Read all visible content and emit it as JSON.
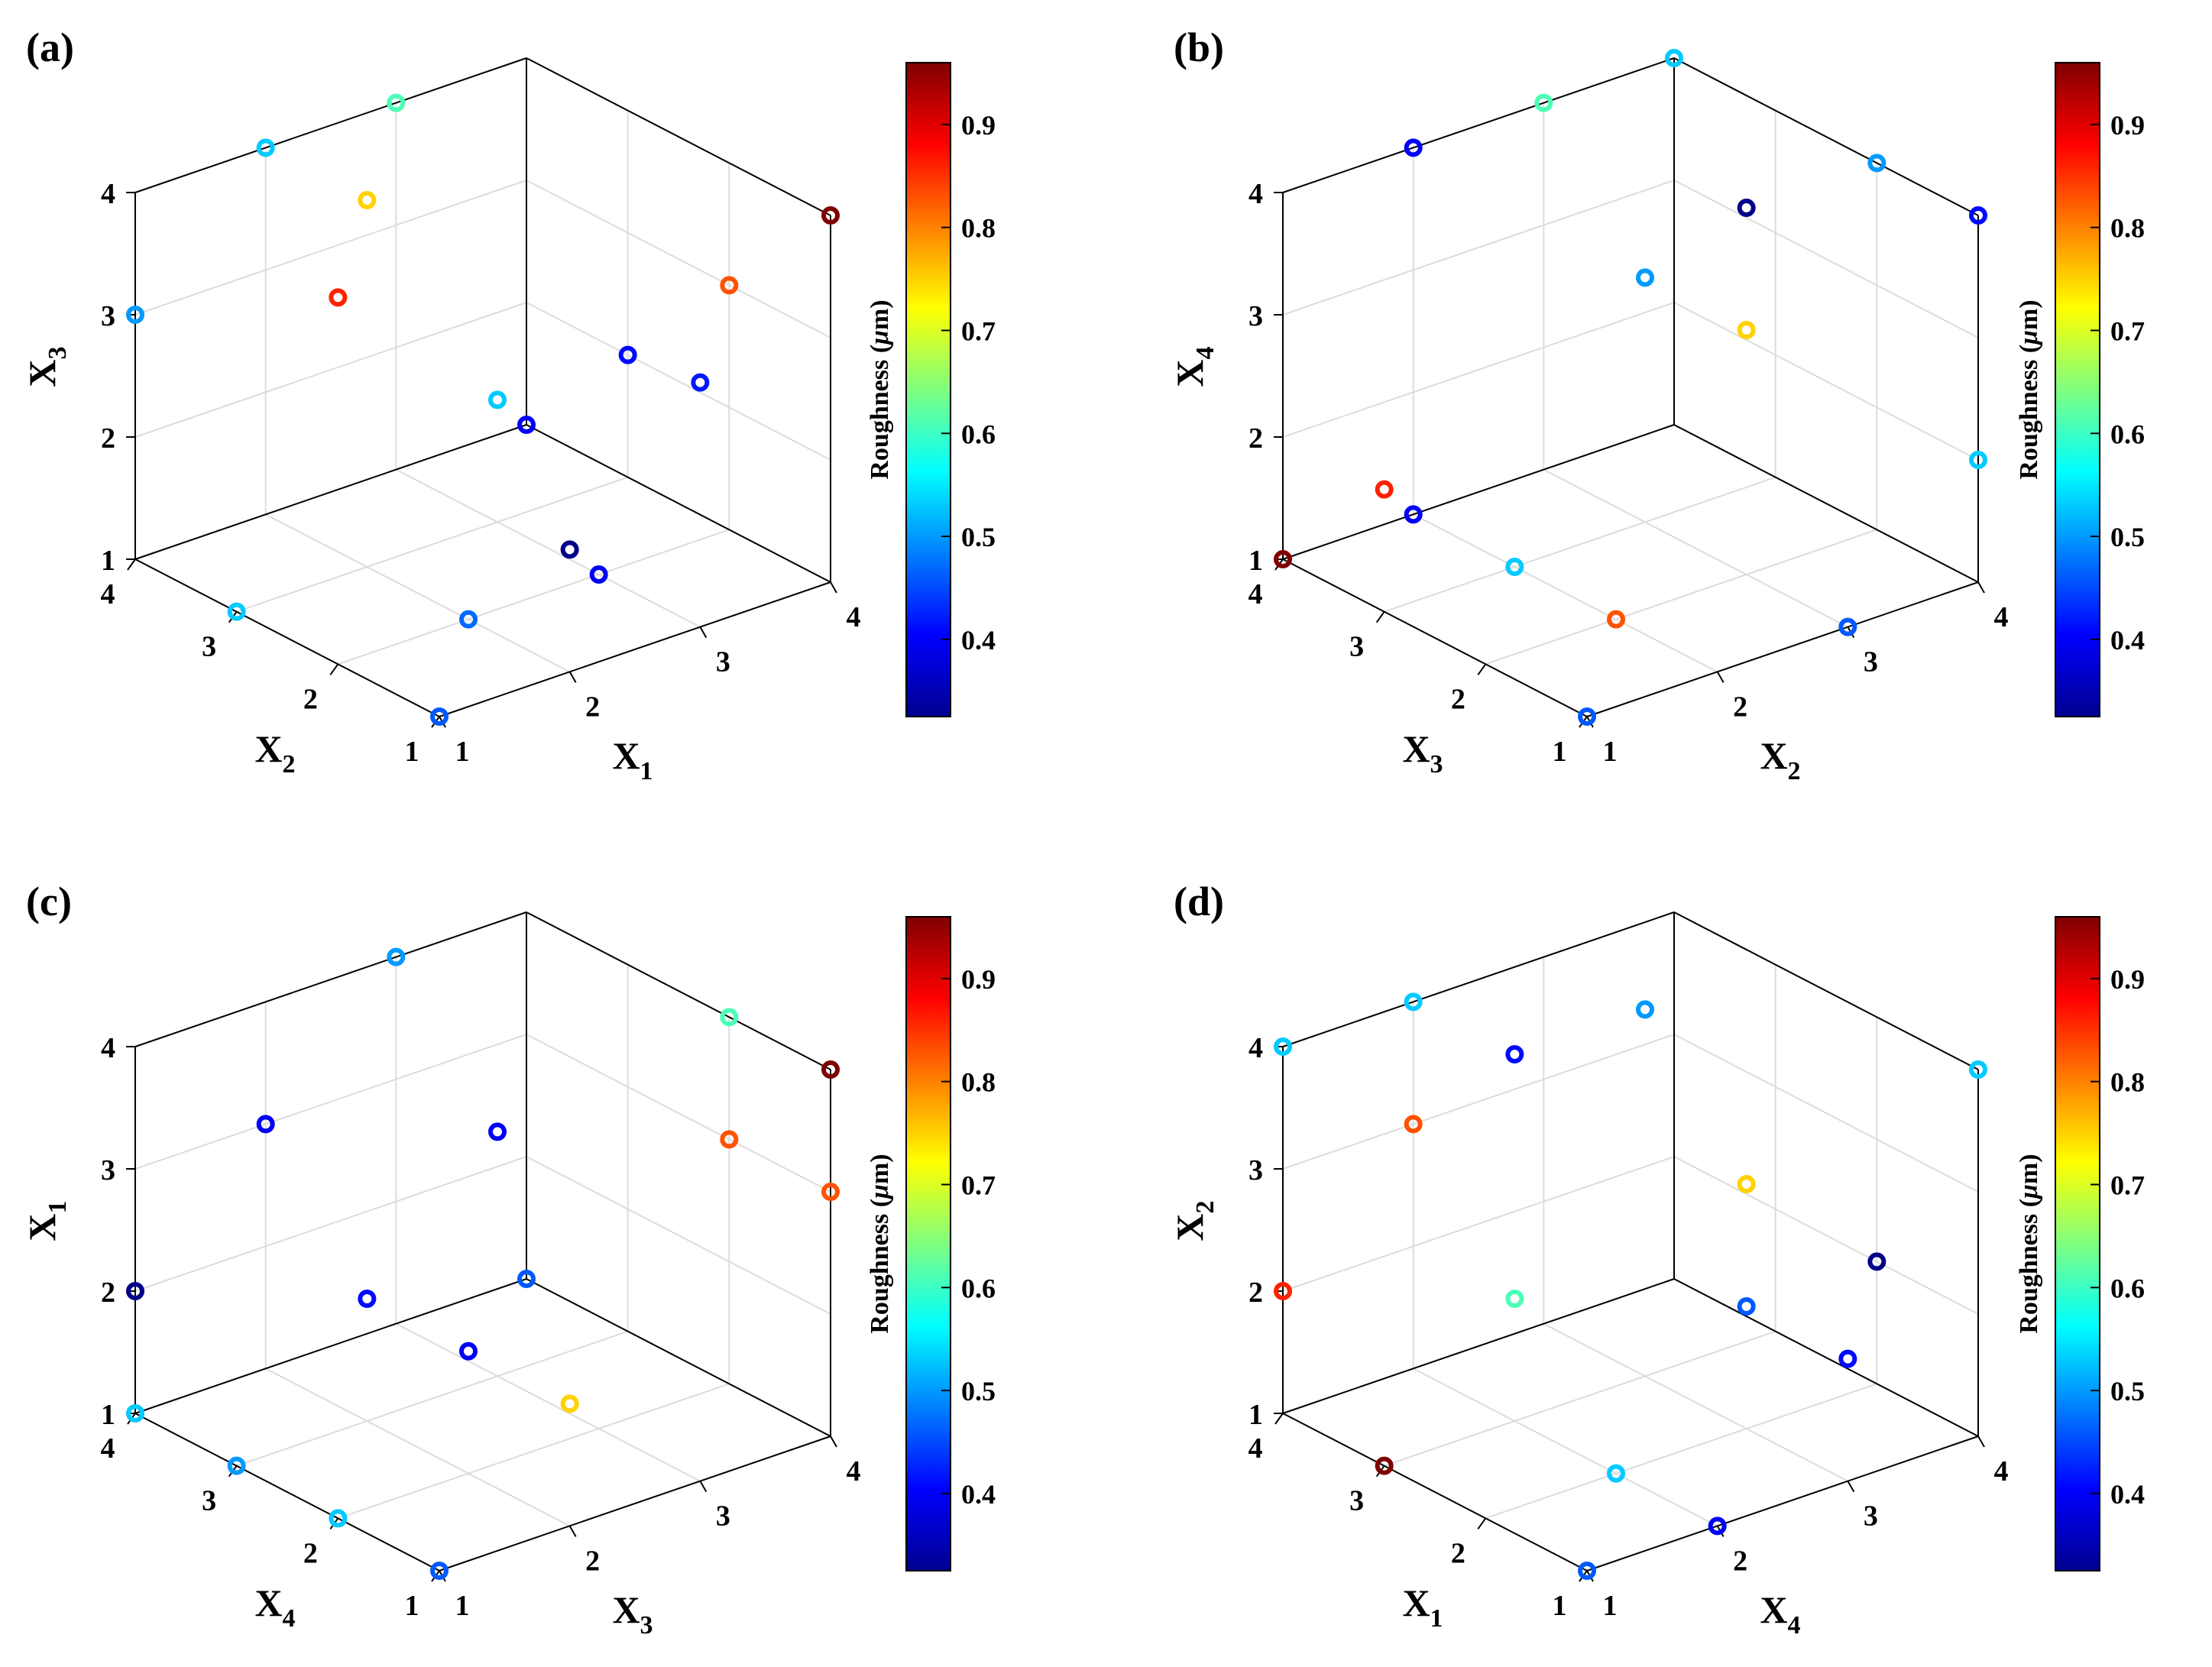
{
  "colorbar": {
    "label": "Roughness (",
    "mu": "μ",
    "unit_suffix": "m)",
    "min": 0.325,
    "max": 0.96,
    "ticks": [
      "0.4",
      "0.5",
      "0.6",
      "0.7",
      "0.8",
      "0.9"
    ],
    "colormap": "jet"
  },
  "chart_data": [
    {
      "panel": "(a)",
      "type": "scatter",
      "x_label": "X",
      "x_sub": "1",
      "y_label": "X",
      "y_sub": "2",
      "z_label": "X",
      "z_sub": "3",
      "ticks": [
        "1",
        "2",
        "3",
        "4"
      ],
      "xlim": [
        1,
        4
      ],
      "ylim": [
        1,
        4
      ],
      "zlim": [
        1,
        4
      ],
      "colorbar_label": "Roughness (μm)",
      "points": [
        {
          "x": 1,
          "y": 1,
          "z": 1,
          "c": 0.46
        },
        {
          "x": 2,
          "y": 1,
          "z": 2,
          "c": 0.33
        },
        {
          "x": 3,
          "y": 1,
          "z": 3,
          "c": 0.42
        },
        {
          "x": 4,
          "y": 1,
          "z": 4,
          "c": 0.96
        },
        {
          "x": 2,
          "y": 2,
          "z": 1,
          "c": 0.47
        },
        {
          "x": 3,
          "y": 2,
          "z": 1,
          "c": 0.4
        },
        {
          "x": 4,
          "y": 2,
          "z": 3,
          "c": 0.83
        },
        {
          "x": 4,
          "y": 3,
          "z": 2,
          "c": 0.41
        },
        {
          "x": 3,
          "y": 3,
          "z": 2,
          "c": 0.53
        },
        {
          "x": 4,
          "y": 4,
          "z": 1,
          "c": 0.4
        },
        {
          "x": 3,
          "y": 4,
          "z": 4,
          "c": 0.61
        },
        {
          "x": 1,
          "y": 2,
          "z": 4,
          "c": 0.86
        },
        {
          "x": 1,
          "y": 3,
          "z": 1,
          "c": 0.53
        },
        {
          "x": 2,
          "y": 3,
          "z": 4,
          "c": 0.75
        },
        {
          "x": 1,
          "y": 4,
          "z": 3,
          "c": 0.5
        },
        {
          "x": 2,
          "y": 4,
          "z": 4,
          "c": 0.53
        }
      ]
    },
    {
      "panel": "(b)",
      "type": "scatter",
      "x_label": "X",
      "x_sub": "2",
      "y_label": "X",
      "y_sub": "3",
      "z_label": "X",
      "z_sub": "4",
      "ticks": [
        "1",
        "2",
        "3",
        "4"
      ],
      "xlim": [
        1,
        4
      ],
      "ylim": [
        1,
        4
      ],
      "zlim": [
        1,
        4
      ],
      "colorbar_label": "Roughness (μm)",
      "points": [
        {
          "x": 1,
          "y": 1,
          "z": 1,
          "c": 0.46
        },
        {
          "x": 3,
          "y": 1,
          "z": 1,
          "c": 0.46
        },
        {
          "x": 4,
          "y": 1,
          "z": 2,
          "c": 0.53
        },
        {
          "x": 4,
          "y": 1,
          "z": 4,
          "c": 0.41
        },
        {
          "x": 2,
          "y": 2,
          "z": 1,
          "c": 0.83
        },
        {
          "x": 3,
          "y": 2,
          "z": 3,
          "c": 0.75
        },
        {
          "x": 3,
          "y": 2,
          "z": 4,
          "c": 0.33
        },
        {
          "x": 4,
          "y": 2,
          "z": 4,
          "c": 0.5
        },
        {
          "x": 1,
          "y": 3,
          "z": 2,
          "c": 0.86
        },
        {
          "x": 2,
          "y": 3,
          "z": 1,
          "c": 0.53
        },
        {
          "x": 3,
          "y": 3,
          "z": 3,
          "c": 0.5
        },
        {
          "x": 4,
          "y": 4,
          "z": 4,
          "c": 0.53
        },
        {
          "x": 1,
          "y": 4,
          "z": 1,
          "c": 0.96
        },
        {
          "x": 2,
          "y": 4,
          "z": 1,
          "c": 0.4
        },
        {
          "x": 2,
          "y": 4,
          "z": 4,
          "c": 0.4
        },
        {
          "x": 3,
          "y": 4,
          "z": 4,
          "c": 0.61
        }
      ]
    },
    {
      "panel": "(c)",
      "type": "scatter",
      "x_label": "X",
      "x_sub": "3",
      "y_label": "X",
      "y_sub": "4",
      "z_label": "X",
      "z_sub": "1",
      "ticks": [
        "1",
        "2",
        "3",
        "4"
      ],
      "xlim": [
        1,
        4
      ],
      "ylim": [
        1,
        4
      ],
      "zlim": [
        1,
        4
      ],
      "colorbar_label": "Roughness (μm)",
      "points": [
        {
          "x": 1,
          "y": 1,
          "z": 1,
          "c": 0.46
        },
        {
          "x": 1,
          "y": 2,
          "z": 1,
          "c": 0.53
        },
        {
          "x": 1,
          "y": 3,
          "z": 1,
          "c": 0.5
        },
        {
          "x": 1,
          "y": 4,
          "z": 1,
          "c": 0.53
        },
        {
          "x": 2,
          "y": 1,
          "z": 2,
          "c": 0.75
        },
        {
          "x": 2,
          "y": 2,
          "z": 2,
          "c": 0.4
        },
        {
          "x": 2,
          "y": 3,
          "z": 2,
          "c": 0.41
        },
        {
          "x": 1,
          "y": 4,
          "z": 2,
          "c": 0.33
        },
        {
          "x": 4,
          "y": 1,
          "z": 3,
          "c": 0.83
        },
        {
          "x": 4,
          "y": 2,
          "z": 3,
          "c": 0.83
        },
        {
          "x": 3,
          "y": 3,
          "z": 3,
          "c": 0.4
        },
        {
          "x": 2,
          "y": 4,
          "z": 3,
          "c": 0.4
        },
        {
          "x": 4,
          "y": 1,
          "z": 4,
          "c": 0.96
        },
        {
          "x": 4,
          "y": 2,
          "z": 4,
          "c": 0.61
        },
        {
          "x": 3,
          "y": 4,
          "z": 4,
          "c": 0.5
        },
        {
          "x": 4,
          "y": 4,
          "z": 1,
          "c": 0.46
        }
      ]
    },
    {
      "panel": "(d)",
      "type": "scatter",
      "x_label": "X",
      "x_sub": "4",
      "y_label": "X",
      "y_sub": "1",
      "z_label": "X",
      "z_sub": "2",
      "ticks": [
        "1",
        "2",
        "3",
        "4"
      ],
      "xlim": [
        1,
        4
      ],
      "ylim": [
        1,
        4
      ],
      "zlim": [
        1,
        4
      ],
      "colorbar_label": "Roughness (μm)",
      "points": [
        {
          "x": 1,
          "y": 1,
          "z": 1,
          "c": 0.46
        },
        {
          "x": 2,
          "y": 1,
          "z": 1,
          "c": 0.4
        },
        {
          "x": 3,
          "y": 1,
          "z": 2,
          "c": 0.41
        },
        {
          "x": 4,
          "y": 1,
          "z": 4,
          "c": 0.53
        },
        {
          "x": 2,
          "y": 2,
          "z": 1,
          "c": 0.53
        },
        {
          "x": 3,
          "y": 2,
          "z": 2,
          "c": 0.46
        },
        {
          "x": 4,
          "y": 2,
          "z": 2,
          "c": 0.33
        },
        {
          "x": 3,
          "y": 2,
          "z": 3,
          "c": 0.75
        },
        {
          "x": 1,
          "y": 3,
          "z": 1,
          "c": 0.96
        },
        {
          "x": 2,
          "y": 3,
          "z": 2,
          "c": 0.61
        },
        {
          "x": 3,
          "y": 3,
          "z": 4,
          "c": 0.5
        },
        {
          "x": 2,
          "y": 3,
          "z": 4,
          "c": 0.41
        },
        {
          "x": 1,
          "y": 4,
          "z": 2,
          "c": 0.86
        },
        {
          "x": 1,
          "y": 4,
          "z": 4,
          "c": 0.53
        },
        {
          "x": 2,
          "y": 4,
          "z": 4,
          "c": 0.53
        },
        {
          "x": 2,
          "y": 4,
          "z": 3,
          "c": 0.83
        }
      ]
    }
  ]
}
